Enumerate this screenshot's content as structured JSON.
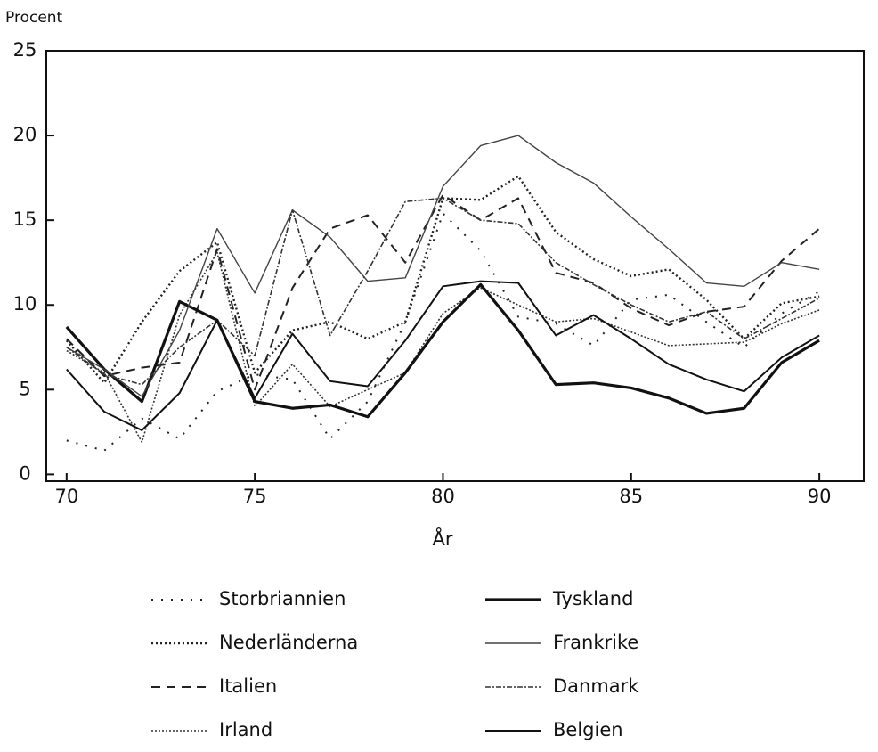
{
  "chart_data": {
    "type": "line",
    "ylabel": "Procent",
    "xlabel": "År",
    "x": [
      70,
      71,
      72,
      73,
      74,
      75,
      76,
      77,
      78,
      79,
      80,
      81,
      82,
      83,
      84,
      85,
      86,
      87,
      88,
      89,
      90
    ],
    "xlim": [
      69.46,
      91.18
    ],
    "xticks": [
      70,
      75,
      80,
      85,
      90
    ],
    "ylim": [
      -0.4,
      25
    ],
    "yticks": [
      0,
      5,
      10,
      15,
      20,
      25
    ],
    "series": [
      {
        "name": "Storbriannien",
        "color": "#222",
        "dash": "2 9",
        "width": 2,
        "values": [
          2.0,
          1.4,
          3.3,
          2.1,
          4.9,
          5.9,
          5.6,
          2.1,
          4.3,
          9.0,
          15.4,
          13.2,
          9.3,
          8.9,
          7.6,
          10.3,
          10.6,
          9.0,
          7.5,
          9.5,
          10.8
        ]
      },
      {
        "name": "Nederländerna",
        "color": "#222",
        "dash": "2 3",
        "width": 2.4,
        "values": [
          7.9,
          5.4,
          9.0,
          12.0,
          13.7,
          6.0,
          8.5,
          9.0,
          8.0,
          9.0,
          16.3,
          16.2,
          17.6,
          14.3,
          12.7,
          11.7,
          12.1,
          10.3,
          8.0,
          10.1,
          10.5
        ]
      },
      {
        "name": "Italien",
        "color": "#222",
        "dash": "10 7",
        "width": 2,
        "values": [
          8.0,
          5.8,
          6.3,
          6.6,
          13.3,
          5.0,
          11.0,
          14.5,
          15.3,
          12.5,
          16.5,
          15.0,
          16.3,
          11.9,
          11.3,
          9.8,
          8.8,
          9.6,
          9.9,
          12.6,
          14.5
        ]
      },
      {
        "name": "Irland",
        "color": "#333",
        "dash": "2 2",
        "width": 1.6,
        "values": [
          7.3,
          6.0,
          1.9,
          9.4,
          13.1,
          4.0,
          6.5,
          4.0,
          5.0,
          6.0,
          9.5,
          11.0,
          10.0,
          9.0,
          9.2,
          8.4,
          7.6,
          7.7,
          7.8,
          8.9,
          9.7
        ]
      },
      {
        "name": "Tyskland",
        "color": "#111",
        "dash": "",
        "width": 3.2,
        "values": [
          8.7,
          6.2,
          4.3,
          10.2,
          9.1,
          4.3,
          3.9,
          4.1,
          3.4,
          6.0,
          9.0,
          11.2,
          8.5,
          5.3,
          5.4,
          5.1,
          4.5,
          3.6,
          3.9,
          6.6,
          7.9
        ]
      },
      {
        "name": "Frankrike",
        "color": "#444",
        "dash": "",
        "width": 1.4,
        "values": [
          7.5,
          6.2,
          4.6,
          8.5,
          14.5,
          10.7,
          15.6,
          14.0,
          11.4,
          11.6,
          17.0,
          19.4,
          20.0,
          18.4,
          17.2,
          15.2,
          13.3,
          11.3,
          11.1,
          12.5,
          12.1
        ]
      },
      {
        "name": "Danmark",
        "color": "#333",
        "dash": "6 2 2 2",
        "width": 1.6,
        "values": [
          7.5,
          5.9,
          5.3,
          7.5,
          9.1,
          7.0,
          15.6,
          8.2,
          12.0,
          16.1,
          16.3,
          15.0,
          14.8,
          12.5,
          11.2,
          10.0,
          9.0,
          9.6,
          8.0,
          9.2,
          10.4
        ]
      },
      {
        "name": "Belgien",
        "color": "#111",
        "dash": "",
        "width": 2,
        "values": [
          6.2,
          3.7,
          2.6,
          4.8,
          9.1,
          4.5,
          8.3,
          5.5,
          5.2,
          7.9,
          11.1,
          11.4,
          11.3,
          8.2,
          9.4,
          8.0,
          6.5,
          5.6,
          4.9,
          6.9,
          8.2
        ]
      }
    ]
  }
}
